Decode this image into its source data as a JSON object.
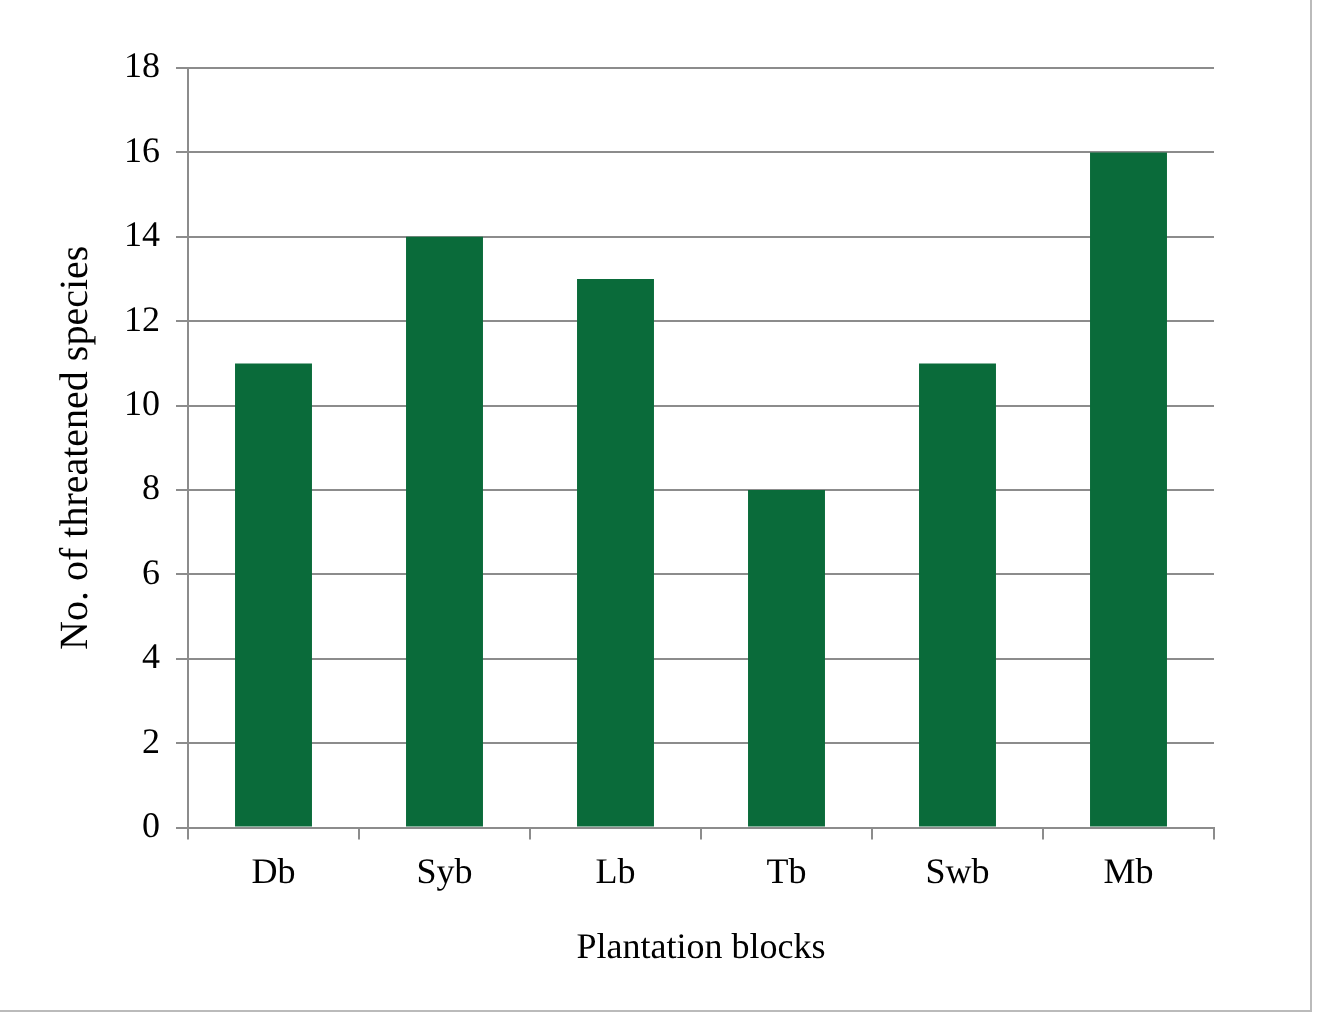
{
  "chart_data": {
    "type": "bar",
    "xlabel": "Plantation blocks",
    "ylabel": "No. of threatened species",
    "categories": [
      "Db",
      "Syb",
      "Lb",
      "Tb",
      "Swb",
      "Mb"
    ],
    "values": [
      11,
      14,
      13,
      8,
      11,
      16
    ],
    "color": "#0a6b3a",
    "ylim": [
      0,
      18
    ],
    "yticks": [
      0,
      2,
      4,
      6,
      8,
      10,
      12,
      14,
      16,
      18
    ],
    "grid": "y",
    "legend": false
  }
}
